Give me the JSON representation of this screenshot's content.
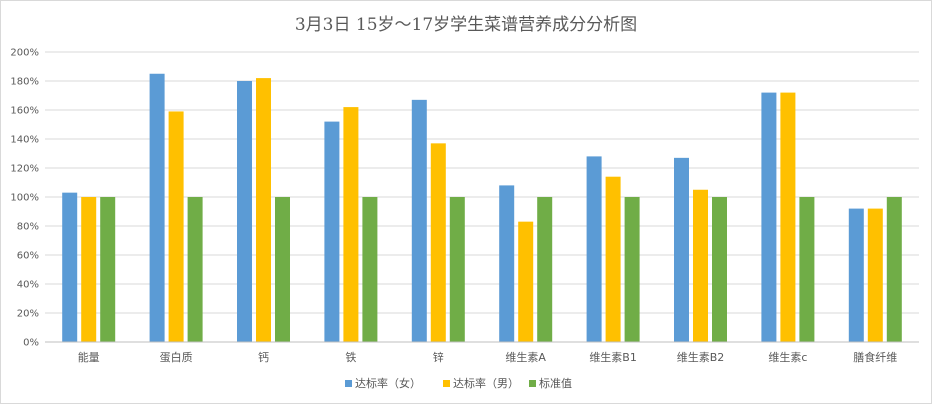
{
  "chart_data": {
    "type": "bar",
    "title": "3月3日 15岁～17岁学生菜谱营养成分分析图",
    "categories": [
      "能量",
      "蛋白质",
      "钙",
      "铁",
      "锌",
      "维生素A",
      "维生素B1",
      "维生素B2",
      "维生素c",
      "膳食纤维"
    ],
    "ylim": [
      0,
      200
    ],
    "yticks": [
      0,
      20,
      40,
      60,
      80,
      100,
      120,
      140,
      160,
      180,
      200
    ],
    "ytick_labels": [
      "0%",
      "20%",
      "40%",
      "60%",
      "80%",
      "100%",
      "120%",
      "140%",
      "160%",
      "180%",
      "200%"
    ],
    "grid": true,
    "legend_position": "bottom",
    "series": [
      {
        "name": "达标率（女）",
        "color": "#5b9bd5",
        "values": [
          103,
          185,
          180,
          152,
          167,
          108,
          128,
          127,
          172,
          92
        ]
      },
      {
        "name": "达标率（男）",
        "color": "#ffc000",
        "values": [
          100,
          159,
          182,
          162,
          137,
          83,
          114,
          105,
          172,
          92
        ]
      },
      {
        "name": "标准值",
        "color": "#70ad47",
        "values": [
          100,
          100,
          100,
          100,
          100,
          100,
          100,
          100,
          100,
          100
        ]
      }
    ]
  }
}
